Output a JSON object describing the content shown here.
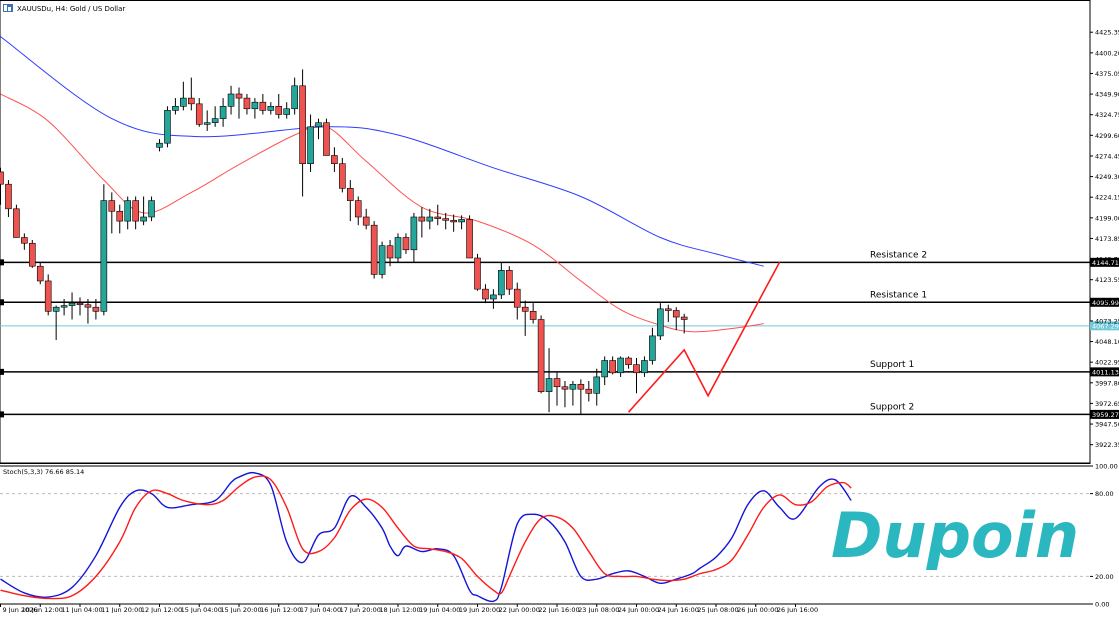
{
  "header": {
    "icon": "chart-window-icon",
    "title": "XAUUSDu, H4:  Gold / US Dollar"
  },
  "logo": {
    "text": "Dupoin",
    "color": "#2ab7bf"
  },
  "colors": {
    "bull": "#26a69a",
    "bear": "#ef5350",
    "ma_fast": "#ff5252",
    "ma_slow": "#2e3bff",
    "stoch_main": "#1414d8",
    "stoch_signal": "#ff1a1a",
    "current_price": "#6fc8d8",
    "level_line": "#000000",
    "pattern": "#ff1a1a"
  },
  "chart_data": [
    {
      "type": "candlestick",
      "symbol": "XAUUSDu",
      "timeframe": "H4",
      "ylim": [
        3900,
        4450
      ],
      "y_ticks": [
        "4425.35",
        "4400.20",
        "4375.05",
        "4349.90",
        "4324.75",
        "4299.60",
        "4274.45",
        "4249.30",
        "4224.15",
        "4199.00",
        "4173.85",
        "4148.70",
        "4123.55",
        "4098.40",
        "4073.25",
        "4048.10",
        "4022.95",
        "3997.80",
        "3972.65",
        "3947.50",
        "3922.35"
      ],
      "x_ticks": [
        "9 Jun 2026",
        "10 Jun 12:00",
        "11 Jun 04:00",
        "11 Jun 20:00",
        "12 Jun 12:00",
        "15 Jun 04:00",
        "15 Jun 20:00",
        "16 Jun 12:00",
        "17 Jun 04:00",
        "17 Jun 20:00",
        "18 Jun 12:00",
        "19 Jun 04:00",
        "19 Jun 20:00",
        "22 Jun 00:00",
        "22 Jun 16:00",
        "23 Jun 08:00",
        "24 Jun 00:00",
        "24 Jun 16:00",
        "25 Jun 08:00",
        "26 Jun 00:00",
        "26 Jun 16:00"
      ],
      "x_tick_index": [
        0,
        5,
        10,
        15,
        20,
        25,
        30,
        35,
        40,
        45,
        50,
        55,
        60,
        65,
        70,
        75,
        80,
        85,
        90,
        95,
        100
      ],
      "candles": [
        [
          4255,
          4260,
          4215,
          4240
        ],
        [
          4240,
          4245,
          4200,
          4210
        ],
        [
          4210,
          4215,
          4175,
          4175
        ],
        [
          4175,
          4180,
          4160,
          4168
        ],
        [
          4168,
          4172,
          4138,
          4140
        ],
        [
          4140,
          4145,
          4118,
          4122
        ],
        [
          4122,
          4130,
          4080,
          4085
        ],
        [
          4085,
          4092,
          4050,
          4090
        ],
        [
          4090,
          4100,
          4080,
          4092
        ],
        [
          4092,
          4108,
          4075,
          4095
        ],
        [
          4095,
          4102,
          4080,
          4093
        ],
        [
          4093,
          4100,
          4070,
          4090
        ],
        [
          4090,
          4100,
          4075,
          4085
        ],
        [
          4085,
          4240,
          4080,
          4220
        ],
        [
          4220,
          4230,
          4180,
          4207
        ],
        [
          4207,
          4215,
          4180,
          4195
        ],
        [
          4195,
          4225,
          4185,
          4220
        ],
        [
          4220,
          4225,
          4185,
          4195
        ],
        [
          4195,
          4225,
          4190,
          4200
        ],
        [
          4200,
          4225,
          4195,
          4220
        ],
        [
          4285,
          4295,
          4280,
          4290
        ],
        [
          4290,
          4335,
          4285,
          4330
        ],
        [
          4330,
          4345,
          4325,
          4335
        ],
        [
          4335,
          4365,
          4330,
          4345
        ],
        [
          4345,
          4370,
          4330,
          4338
        ],
        [
          4338,
          4345,
          4310,
          4313
        ],
        [
          4313,
          4330,
          4305,
          4315
        ],
        [
          4315,
          4335,
          4310,
          4320
        ],
        [
          4320,
          4345,
          4310,
          4335
        ],
        [
          4335,
          4360,
          4325,
          4350
        ],
        [
          4350,
          4358,
          4320,
          4345
        ],
        [
          4345,
          4350,
          4325,
          4332
        ],
        [
          4332,
          4345,
          4320,
          4340
        ],
        [
          4340,
          4350,
          4325,
          4330
        ],
        [
          4330,
          4340,
          4325,
          4335
        ],
        [
          4335,
          4350,
          4320,
          4325
        ],
        [
          4325,
          4340,
          4320,
          4332
        ],
        [
          4332,
          4370,
          4325,
          4360
        ],
        [
          4360,
          4380,
          4225,
          4265
        ],
        [
          4265,
          4325,
          4255,
          4310
        ],
        [
          4310,
          4320,
          4295,
          4315
        ],
        [
          4315,
          4320,
          4275,
          4275
        ],
        [
          4275,
          4285,
          4255,
          4265
        ],
        [
          4265,
          4272,
          4230,
          4235
        ],
        [
          4235,
          4245,
          4195,
          4220
        ],
        [
          4220,
          4225,
          4190,
          4200
        ],
        [
          4200,
          4210,
          4185,
          4190
        ],
        [
          4190,
          4195,
          4125,
          4130
        ],
        [
          4130,
          4170,
          4125,
          4165
        ],
        [
          4165,
          4172,
          4140,
          4150
        ],
        [
          4150,
          4180,
          4145,
          4175
        ],
        [
          4175,
          4180,
          4155,
          4160
        ],
        [
          4160,
          4205,
          4145,
          4200
        ],
        [
          4200,
          4212,
          4175,
          4195
        ],
        [
          4195,
          4210,
          4185,
          4200
        ],
        [
          4200,
          4215,
          4190,
          4198
        ],
        [
          4198,
          4205,
          4185,
          4196
        ],
        [
          4196,
          4203,
          4182,
          4194
        ],
        [
          4194,
          4202,
          4185,
          4197
        ],
        [
          4197,
          4202,
          4150,
          4150
        ],
        [
          4150,
          4155,
          4110,
          4112
        ],
        [
          4112,
          4118,
          4095,
          4100
        ],
        [
          4100,
          4112,
          4088,
          4105
        ],
        [
          4105,
          4145,
          4100,
          4135
        ],
        [
          4135,
          4140,
          4105,
          4112
        ],
        [
          4112,
          4120,
          4075,
          4090
        ],
        [
          4090,
          4098,
          4055,
          4085
        ],
        [
          4085,
          4095,
          4070,
          4075
        ],
        [
          4075,
          4080,
          3985,
          3987
        ],
        [
          3987,
          4040,
          3962,
          4003
        ],
        [
          4003,
          4010,
          3970,
          3993
        ],
        [
          3993,
          4000,
          3968,
          3990
        ],
        [
          3990,
          4000,
          3970,
          3996
        ],
        [
          3996,
          4002,
          3960,
          3990
        ],
        [
          3990,
          4000,
          3975,
          3985
        ],
        [
          3985,
          4015,
          3970,
          4005
        ],
        [
          4005,
          4030,
          3995,
          4025
        ],
        [
          4025,
          4030,
          4008,
          4010
        ],
        [
          4010,
          4030,
          4005,
          4028
        ],
        [
          4028,
          4030,
          4015,
          4020
        ],
        [
          4020,
          4028,
          3985,
          4010
        ],
        [
          4010,
          4030,
          4005,
          4025
        ],
        [
          4025,
          4065,
          4020,
          4055
        ],
        [
          4055,
          4095,
          4050,
          4088
        ],
        [
          4088,
          4093,
          4072,
          4086
        ],
        [
          4086,
          4090,
          4062,
          4078
        ],
        [
          4078,
          4082,
          4058,
          4075
        ]
      ],
      "ma_fast": [
        [
          0,
          4350
        ],
        [
          6,
          4317
        ],
        [
          13,
          4245
        ],
        [
          18,
          4205
        ],
        [
          24,
          4230
        ],
        [
          30,
          4264
        ],
        [
          37,
          4300
        ],
        [
          41,
          4310
        ],
        [
          46,
          4268
        ],
        [
          53,
          4212
        ],
        [
          60,
          4195
        ],
        [
          67,
          4166
        ],
        [
          73,
          4122
        ],
        [
          78,
          4087
        ],
        [
          83,
          4068
        ],
        [
          87,
          4060
        ],
        [
          92,
          4064
        ],
        [
          96,
          4070
        ]
      ],
      "ma_slow": [
        [
          0,
          4420
        ],
        [
          14,
          4320
        ],
        [
          25,
          4298
        ],
        [
          41,
          4310
        ],
        [
          50,
          4300
        ],
        [
          62,
          4260
        ],
        [
          73,
          4225
        ],
        [
          83,
          4175
        ],
        [
          90,
          4155
        ],
        [
          96,
          4140
        ]
      ],
      "levels": [
        {
          "label": "Resistance 2",
          "value": 4144.71,
          "badge": "4144.71"
        },
        {
          "label": "Resistance 1",
          "value": 4095.99,
          "badge": "4095.99"
        },
        {
          "label": "Support 1",
          "value": 4011.13,
          "badge": "4011.13"
        },
        {
          "label": "Support 2",
          "value": 3959.27,
          "badge": "3959.27"
        }
      ],
      "current_price": {
        "value": 4067.29,
        "badge": "4067.29"
      },
      "pattern_line": [
        [
          79,
          3962
        ],
        [
          86,
          4038
        ],
        [
          89,
          3982
        ],
        [
          98,
          4145
        ]
      ]
    },
    {
      "type": "line",
      "title": "Stoch(5,3,3) 76.66 85.14",
      "ylim": [
        0,
        100
      ],
      "y_ticks": [
        "100.00",
        "80.00",
        "20.00",
        "0.00"
      ],
      "levels": [
        80,
        20
      ],
      "series": [
        {
          "key": "main",
          "values": [
            [
              0,
              18
            ],
            [
              3,
              8
            ],
            [
              6,
              5
            ],
            [
              9,
              12
            ],
            [
              12,
              35
            ],
            [
              15,
              70
            ],
            [
              17,
              82
            ],
            [
              19,
              80
            ],
            [
              21,
              70
            ],
            [
              24,
              72
            ],
            [
              27,
              75
            ],
            [
              29,
              88
            ],
            [
              30,
              92
            ],
            [
              32,
              95
            ],
            [
              34,
              86
            ],
            [
              36,
              45
            ],
            [
              38,
              30
            ],
            [
              40,
              50
            ],
            [
              42,
              55
            ],
            [
              44,
              78
            ],
            [
              46,
              70
            ],
            [
              48,
              55
            ],
            [
              49,
              42
            ],
            [
              50,
              35
            ],
            [
              51,
              42
            ],
            [
              53,
              38
            ],
            [
              55,
              40
            ],
            [
              57,
              35
            ],
            [
              59,
              10
            ],
            [
              60,
              6
            ],
            [
              62,
              2
            ],
            [
              63,
              12
            ],
            [
              65,
              58
            ],
            [
              67,
              65
            ],
            [
              69,
              60
            ],
            [
              71,
              45
            ],
            [
              73,
              20
            ],
            [
              75,
              18
            ],
            [
              77,
              22
            ],
            [
              79,
              24
            ],
            [
              81,
              20
            ],
            [
              83,
              15
            ],
            [
              85,
              18
            ],
            [
              87,
              22
            ],
            [
              88,
              26
            ],
            [
              90,
              34
            ],
            [
              92,
              48
            ],
            [
              94,
              72
            ],
            [
              96,
              82
            ],
            [
              98,
              70
            ],
            [
              100,
              62
            ],
            [
              103,
              85
            ],
            [
              105,
              90
            ],
            [
              107,
              75
            ]
          ]
        },
        {
          "key": "signal",
          "values": [
            [
              0,
              10
            ],
            [
              3,
              6
            ],
            [
              6,
              4
            ],
            [
              9,
              6
            ],
            [
              12,
              20
            ],
            [
              15,
              45
            ],
            [
              17,
              70
            ],
            [
              19,
              82
            ],
            [
              21,
              80
            ],
            [
              23,
              75
            ],
            [
              26,
              72
            ],
            [
              28,
              75
            ],
            [
              30,
              85
            ],
            [
              32,
              92
            ],
            [
              34,
              90
            ],
            [
              36,
              70
            ],
            [
              38,
              40
            ],
            [
              40,
              38
            ],
            [
              42,
              48
            ],
            [
              44,
              68
            ],
            [
              46,
              76
            ],
            [
              48,
              70
            ],
            [
              50,
              55
            ],
            [
              52,
              42
            ],
            [
              54,
              40
            ],
            [
              56,
              38
            ],
            [
              58,
              33
            ],
            [
              60,
              20
            ],
            [
              62,
              10
            ],
            [
              63,
              8
            ],
            [
              64,
              20
            ],
            [
              66,
              45
            ],
            [
              68,
              62
            ],
            [
              70,
              63
            ],
            [
              72,
              55
            ],
            [
              74,
              38
            ],
            [
              76,
              22
            ],
            [
              78,
              20
            ],
            [
              80,
              20
            ],
            [
              82,
              18
            ],
            [
              84,
              17
            ],
            [
              86,
              18
            ],
            [
              88,
              22
            ],
            [
              90,
              25
            ],
            [
              92,
              32
            ],
            [
              94,
              50
            ],
            [
              96,
              70
            ],
            [
              98,
              79
            ],
            [
              100,
              72
            ],
            [
              102,
              74
            ],
            [
              104,
              85
            ],
            [
              106,
              88
            ],
            [
              107,
              84
            ]
          ]
        }
      ]
    }
  ]
}
